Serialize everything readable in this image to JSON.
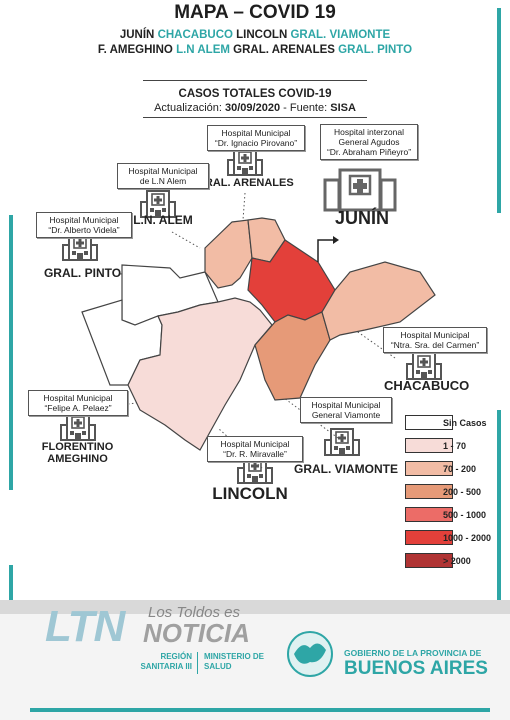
{
  "header": {
    "title": "MAPA – COVID 19",
    "line1": [
      {
        "text": "JUNÍN",
        "teal": false
      },
      {
        "text": "CHACABUCO",
        "teal": true
      },
      {
        "text": "LINCOLN",
        "teal": false
      },
      {
        "text": "GRAL. VIAMONTE",
        "teal": true
      }
    ],
    "line2": [
      {
        "text": "F. AMEGHINO",
        "teal": false
      },
      {
        "text": "L.N ALEM",
        "teal": true
      },
      {
        "text": "GRAL. ARENALES",
        "teal": false
      },
      {
        "text": "GRAL. PINTO",
        "teal": true
      }
    ],
    "subtitle": "CASOS TOTALES COVID-19",
    "update_prefix": "Actualización:",
    "update_date": "30/09/2020",
    "source_prefix": "- Fuente:",
    "source": "SISA"
  },
  "hospitals": [
    {
      "id": "arenales",
      "line1": "Hospital Municipal",
      "line2": "“Dr. Ignacio Pirovano”",
      "city": "GRAL. ARENALES"
    },
    {
      "id": "junin",
      "line1": "Hospital interzonal",
      "line2": "General Agudos",
      "line3": "“Dr. Abraham Piñeyro”",
      "city": "JUNÍN"
    },
    {
      "id": "alem",
      "line1": "Hospital Municipal",
      "line2": "de L.N Alem",
      "city": "L.N. ALEM"
    },
    {
      "id": "pinto",
      "line1": "Hospital Municipal",
      "line2": "“Dr. Alberto Videla”",
      "city": "GRAL. PINTO"
    },
    {
      "id": "chacabuco",
      "line1": "Hospital Municipal",
      "line2": "“Ntra. Sra. del Carmen”",
      "city": "CHACABUCO"
    },
    {
      "id": "ameghino",
      "line1": "Hospital Municipal",
      "line2": "“Felipe A. Pelaez”",
      "city": "FLORENTINO",
      "city2": "AMEGHINO"
    },
    {
      "id": "viamonte",
      "line1": "Hospital Municipal",
      "line2": "General Viamonte",
      "city": "GRAL. VIAMONTE"
    },
    {
      "id": "lincoln",
      "line1": "Hospital Municipal",
      "line2": "“Dr. R. Miravalle”",
      "city": "LINCOLN"
    }
  ],
  "legend": [
    {
      "label": "Sin Casos",
      "color": "#ffffff"
    },
    {
      "label": "1 - 70",
      "color": "#f7dcd8"
    },
    {
      "label": "70 - 200",
      "color": "#f2bca5"
    },
    {
      "label": "200 - 500",
      "color": "#e69a78"
    },
    {
      "label": "500 - 1000",
      "color": "#ec6c67"
    },
    {
      "label": "1000 - 2000",
      "color": "#e3403a"
    },
    {
      "label": "> 2000",
      "color": "#b03434"
    }
  ],
  "regions": [
    {
      "name": "Junín",
      "bin": "1000 - 2000",
      "color": "#e3403a"
    },
    {
      "name": "Chacabuco",
      "bin": "70 - 200",
      "color": "#f2bca5"
    },
    {
      "name": "General Arenales",
      "bin": "70 - 200",
      "color": "#f2bca5"
    },
    {
      "name": "Leandro N. Alem",
      "bin": "70 - 200",
      "color": "#f2bca5"
    },
    {
      "name": "General Viamonte",
      "bin": "200 - 500",
      "color": "#e69a78"
    },
    {
      "name": "Lincoln",
      "bin": "1 - 70",
      "color": "#f7dcd8"
    },
    {
      "name": "General Pinto",
      "bin": "Sin Casos",
      "color": "#ffffff"
    },
    {
      "name": "Florentino Ameghino",
      "bin": "Sin Casos",
      "color": "#ffffff"
    }
  ],
  "footer": {
    "logo": "LTN",
    "brand_script": "Los Toldos es",
    "brand": "NOTICIA",
    "region1": "REGIÓN",
    "region2": "SANITARIA III",
    "ministry1": "MINISTERIO DE",
    "ministry2": "SALUD",
    "gov1": "GOBIERNO DE LA PROVINCIA DE",
    "gov2": "BUENOS AIRES"
  }
}
